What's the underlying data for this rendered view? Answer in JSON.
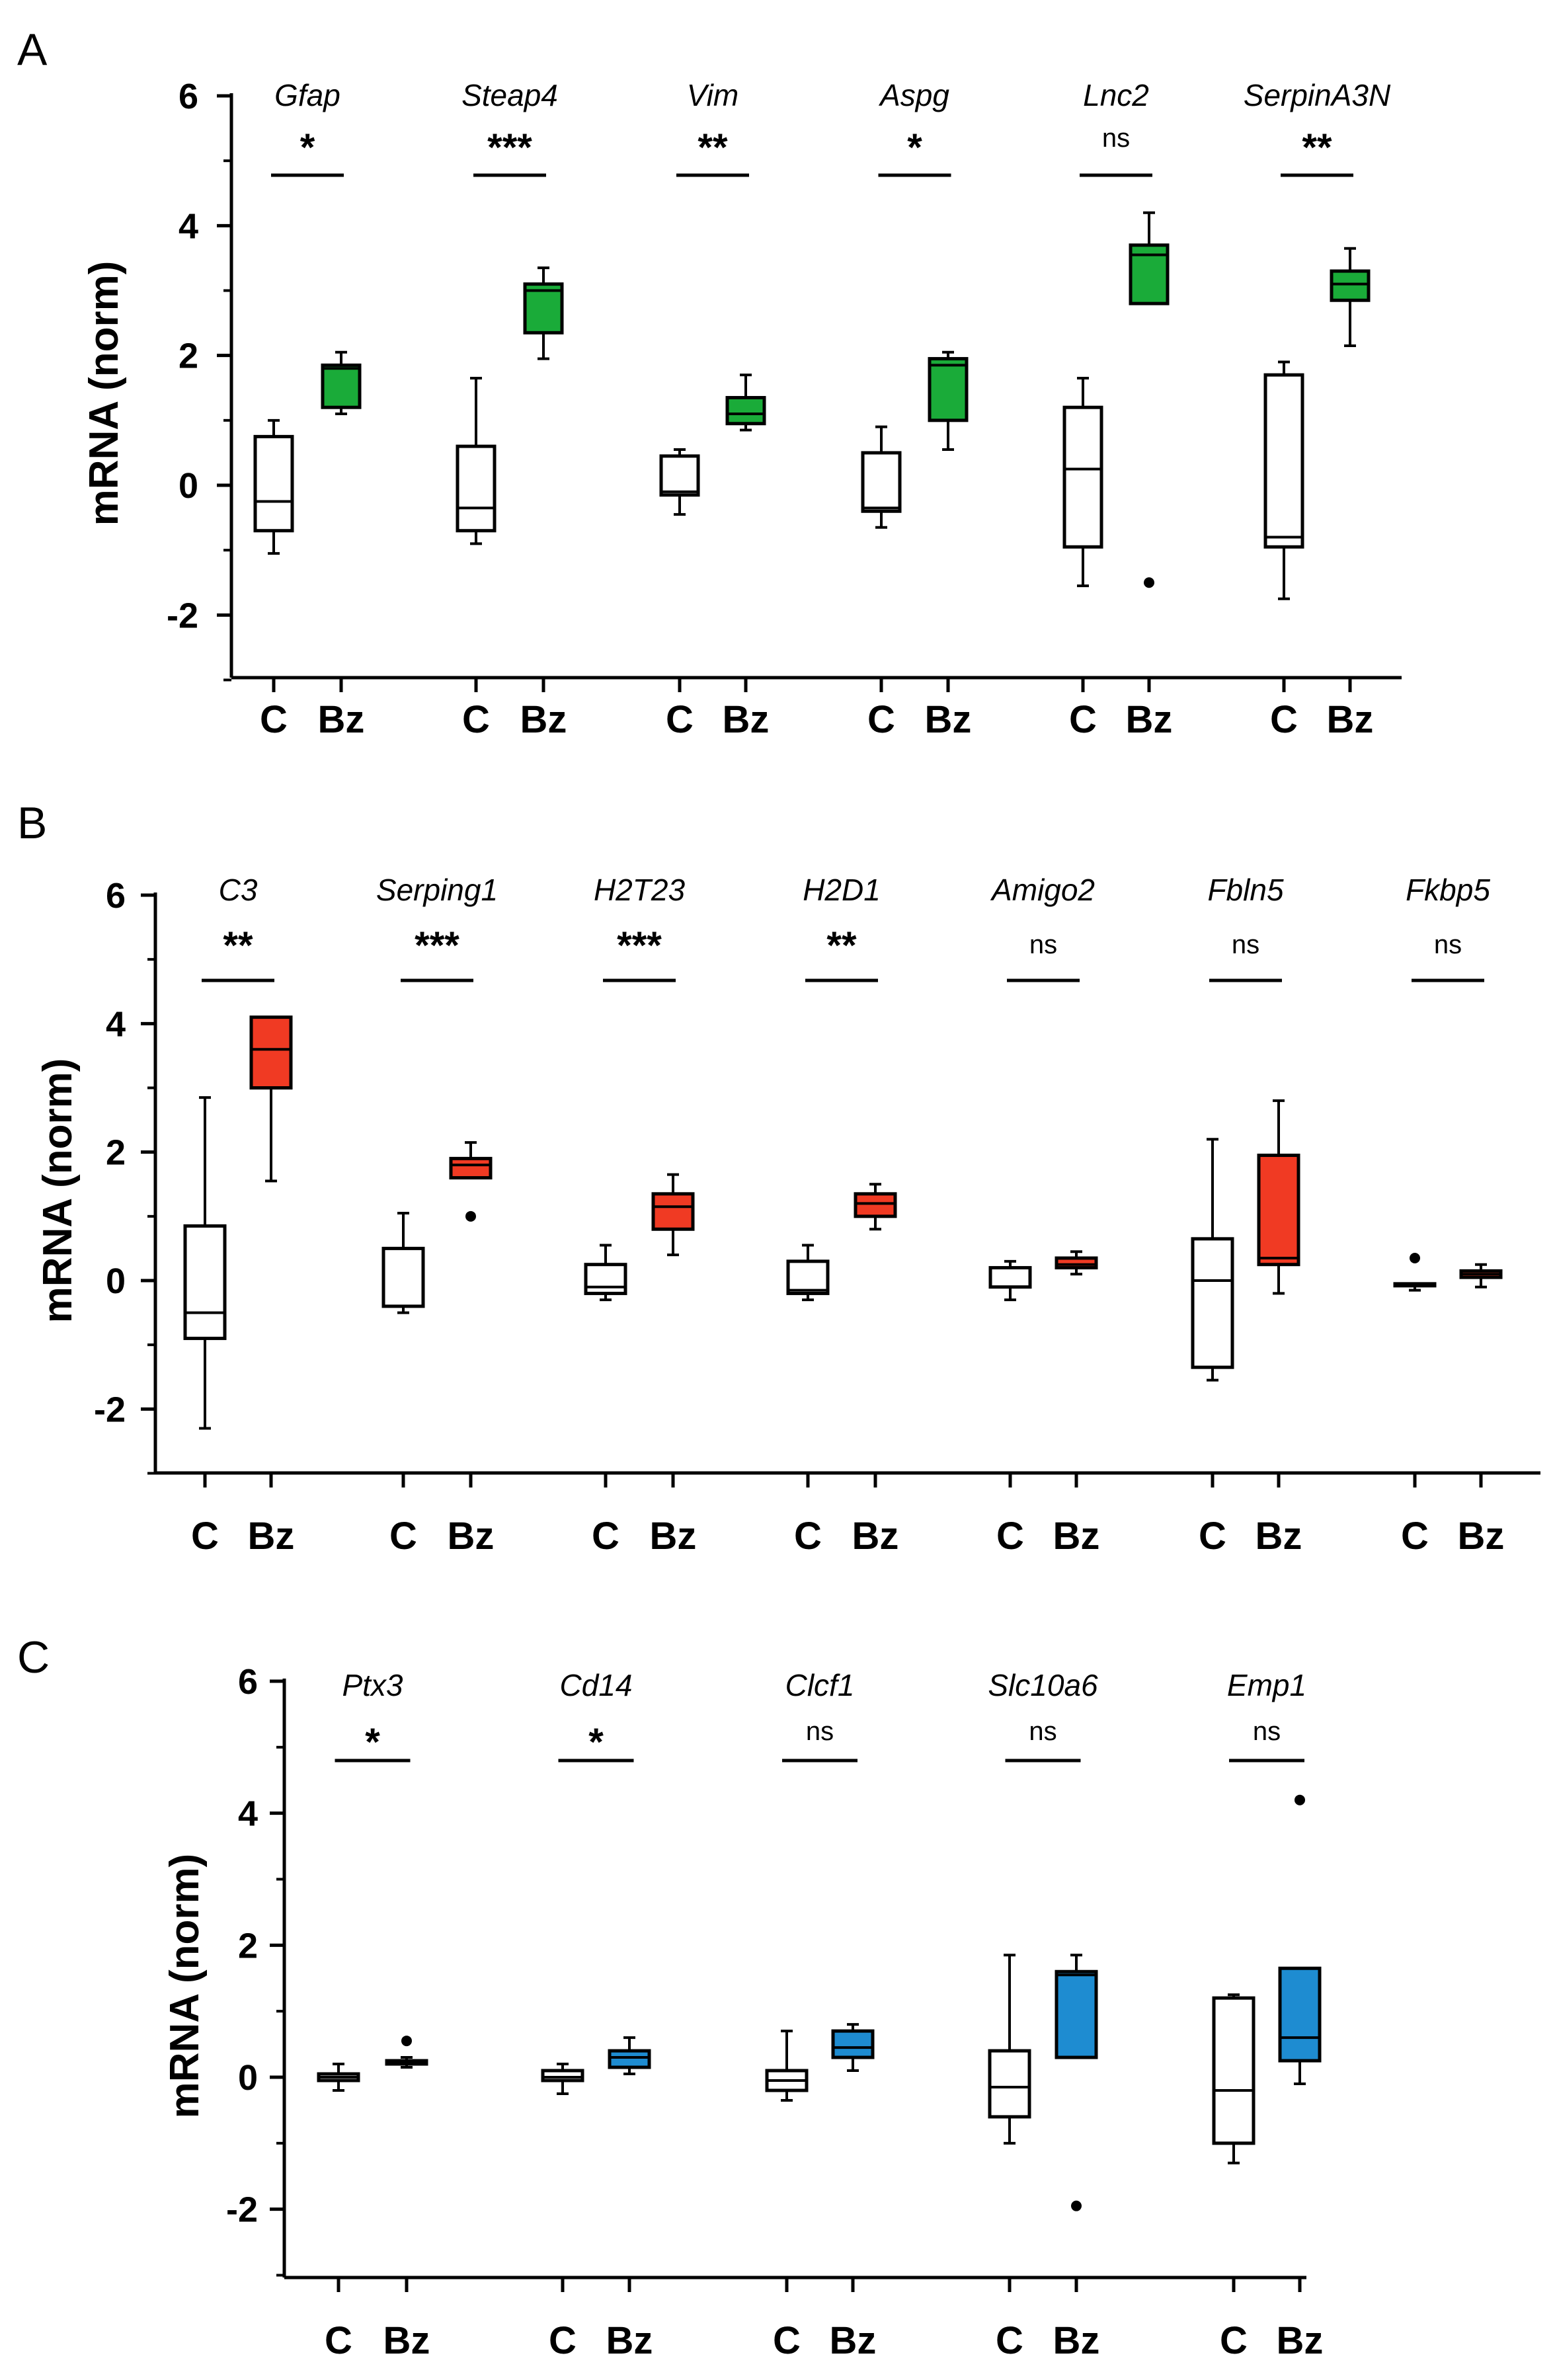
{
  "chart_data": [
    {
      "panel": "A",
      "type": "box",
      "ylabel": "mRNA (norm)",
      "ylim": [
        -3,
        6.2
      ],
      "yticks": [
        "6",
        "4",
        "2",
        "0",
        "-2"
      ],
      "group_labels": [
        "C",
        "Bz"
      ],
      "fill_color": "#1aab39",
      "genes": [
        {
          "name": "Gfap",
          "sig": "*",
          "c": {
            "min": -1.05,
            "q1": -0.7,
            "median": -0.25,
            "q3": 0.75,
            "max": 1.0
          },
          "bz": {
            "min": 1.1,
            "q1": 1.2,
            "median": 1.8,
            "q3": 1.85,
            "max": 2.05
          }
        },
        {
          "name": "Steap4",
          "sig": "***",
          "c": {
            "min": -0.9,
            "q1": -0.7,
            "median": -0.35,
            "q3": 0.6,
            "max": 1.65
          },
          "bz": {
            "min": 1.95,
            "q1": 2.35,
            "median": 3.0,
            "q3": 3.1,
            "max": 3.35
          }
        },
        {
          "name": "Vim",
          "sig": "**",
          "c": {
            "min": -0.45,
            "q1": -0.15,
            "median": -0.1,
            "q3": 0.45,
            "max": 0.55
          },
          "bz": {
            "min": 0.85,
            "q1": 0.95,
            "median": 1.1,
            "q3": 1.35,
            "max": 1.7
          }
        },
        {
          "name": "Aspg",
          "sig": "*",
          "c": {
            "min": -0.65,
            "q1": -0.4,
            "median": -0.35,
            "q3": 0.5,
            "max": 0.9
          },
          "bz": {
            "min": 0.55,
            "q1": 1.0,
            "median": 1.85,
            "q3": 1.95,
            "max": 2.05
          }
        },
        {
          "name": "Lnc2",
          "sig": "ns",
          "c": {
            "min": -1.55,
            "q1": -0.95,
            "median": 0.25,
            "q3": 1.2,
            "max": 1.65
          },
          "bz": {
            "min": 2.8,
            "q1": 2.8,
            "median": 3.55,
            "q3": 3.7,
            "max": 4.2
          },
          "bz_outliers": [
            -1.5
          ]
        },
        {
          "name": "SerpinA3N",
          "sig": "**",
          "c": {
            "min": -1.75,
            "q1": -0.95,
            "median": -0.8,
            "q3": 1.7,
            "max": 1.9
          },
          "bz": {
            "min": 2.15,
            "q1": 2.85,
            "median": 3.1,
            "q3": 3.3,
            "max": 3.65
          }
        }
      ]
    },
    {
      "panel": "B",
      "type": "box",
      "ylabel": "mRNA (norm)",
      "ylim": [
        -3,
        6.2
      ],
      "yticks": [
        "6",
        "4",
        "2",
        "0",
        "-2"
      ],
      "group_labels": [
        "C",
        "Bz"
      ],
      "fill_color": "#f03a23",
      "genes": [
        {
          "name": "C3",
          "sig": "**",
          "c": {
            "min": -2.3,
            "q1": -0.9,
            "median": -0.5,
            "q3": 0.85,
            "max": 2.85
          },
          "bz": {
            "min": 1.55,
            "q1": 3.0,
            "median": 3.6,
            "q3": 4.1,
            "max": 4.1
          }
        },
        {
          "name": "Serping1",
          "sig": "***",
          "c": {
            "min": -0.5,
            "q1": -0.4,
            "median": -0.4,
            "q3": 0.5,
            "max": 1.05
          },
          "bz": {
            "min": 1.6,
            "q1": 1.6,
            "median": 1.8,
            "q3": 1.9,
            "max": 2.15
          },
          "bz_outliers": [
            1.0
          ]
        },
        {
          "name": "H2T23",
          "sig": "***",
          "c": {
            "min": -0.3,
            "q1": -0.2,
            "median": -0.1,
            "q3": 0.25,
            "max": 0.55
          },
          "bz": {
            "min": 0.4,
            "q1": 0.8,
            "median": 1.15,
            "q3": 1.35,
            "max": 1.65
          }
        },
        {
          "name": "H2D1",
          "sig": "**",
          "c": {
            "min": -0.3,
            "q1": -0.2,
            "median": -0.15,
            "q3": 0.3,
            "max": 0.55
          },
          "bz": {
            "min": 0.8,
            "q1": 1.0,
            "median": 1.2,
            "q3": 1.35,
            "max": 1.5
          }
        },
        {
          "name": "Amigo2",
          "sig": "ns",
          "c": {
            "min": -0.3,
            "q1": -0.1,
            "median": -0.1,
            "q3": 0.2,
            "max": 0.3
          },
          "bz": {
            "min": 0.1,
            "q1": 0.2,
            "median": 0.25,
            "q3": 0.35,
            "max": 0.45
          }
        },
        {
          "name": "Fbln5",
          "sig": "ns",
          "c": {
            "min": -1.55,
            "q1": -1.35,
            "median": 0.0,
            "q3": 0.65,
            "max": 2.2
          },
          "bz": {
            "min": -0.2,
            "q1": 0.25,
            "median": 0.35,
            "q3": 1.95,
            "max": 2.8
          }
        },
        {
          "name": "Fkbp5",
          "sig": "ns",
          "c": {
            "min": -0.15,
            "q1": -0.05,
            "median": -0.05,
            "q3": -0.05,
            "max": -0.05
          },
          "bz": {
            "min": -0.1,
            "q1": 0.05,
            "median": 0.1,
            "q3": 0.15,
            "max": 0.25
          },
          "c_outliers": [
            0.35
          ]
        }
      ]
    },
    {
      "panel": "C",
      "type": "box",
      "ylabel": "mRNA (norm)",
      "ylim": [
        -3,
        6.2
      ],
      "yticks": [
        "6",
        "4",
        "2",
        "0",
        "-2"
      ],
      "group_labels": [
        "C",
        "Bz"
      ],
      "fill_color": "#1e8cd1",
      "genes": [
        {
          "name": "Ptx3",
          "sig": "*",
          "c": {
            "min": -0.2,
            "q1": -0.05,
            "median": 0.0,
            "q3": 0.05,
            "max": 0.2
          },
          "bz": {
            "min": 0.15,
            "q1": 0.2,
            "median": 0.25,
            "q3": 0.25,
            "max": 0.3
          },
          "bz_outliers": [
            0.55
          ]
        },
        {
          "name": "Cd14",
          "sig": "*",
          "c": {
            "min": -0.25,
            "q1": -0.05,
            "median": 0.0,
            "q3": 0.1,
            "max": 0.2
          },
          "bz": {
            "min": 0.05,
            "q1": 0.15,
            "median": 0.3,
            "q3": 0.4,
            "max": 0.6
          }
        },
        {
          "name": "Clcf1",
          "sig": "ns",
          "c": {
            "min": -0.35,
            "q1": -0.2,
            "median": -0.05,
            "q3": 0.1,
            "max": 0.7
          },
          "bz": {
            "min": 0.1,
            "q1": 0.3,
            "median": 0.45,
            "q3": 0.7,
            "max": 0.8
          }
        },
        {
          "name": "Slc10a6",
          "sig": "ns",
          "c": {
            "min": -1.0,
            "q1": -0.6,
            "median": -0.15,
            "q3": 0.4,
            "max": 1.85
          },
          "bz": {
            "min": 0.3,
            "q1": 0.3,
            "median": 1.55,
            "q3": 1.6,
            "max": 1.85
          },
          "bz_outliers": [
            -1.95
          ]
        },
        {
          "name": "Emp1",
          "sig": "ns",
          "c": {
            "min": -1.3,
            "q1": -1.0,
            "median": -0.2,
            "q3": 1.2,
            "max": 1.25
          },
          "bz": {
            "min": -0.1,
            "q1": 0.25,
            "median": 0.6,
            "q3": 1.65,
            "max": 1.65
          },
          "bz_outliers": [
            4.2
          ]
        }
      ]
    }
  ]
}
